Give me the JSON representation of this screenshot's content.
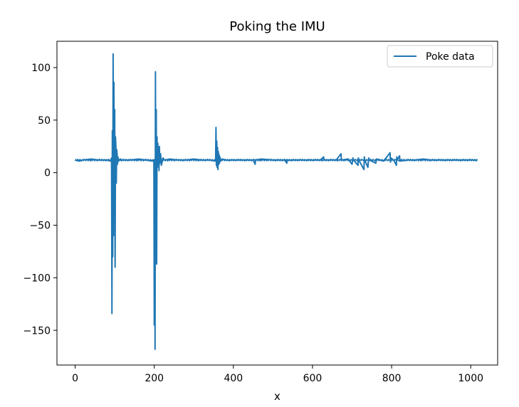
{
  "chart_data": {
    "type": "line",
    "title": "Poking the IMU",
    "xlabel": "x",
    "ylabel": "",
    "xlim": [
      -46,
      1068
    ],
    "ylim": [
      -183,
      125
    ],
    "xticks": [
      0,
      200,
      400,
      600,
      800,
      1000
    ],
    "yticks": [
      100,
      50,
      0,
      -50,
      -100,
      -150
    ],
    "xtick_labels": [
      "0",
      "200",
      "400",
      "600",
      "800",
      "1000"
    ],
    "ytick_labels": [
      "100",
      "50",
      "0",
      "−50",
      "−100",
      "−150"
    ],
    "grid": false,
    "legend": {
      "placement": "top-right",
      "entries": [
        "Poke data"
      ]
    },
    "series": [
      {
        "name": "Poke data",
        "color": "#1f77b4",
        "baseline": 12,
        "x_range": [
          0,
          1017
        ],
        "points": [
          [
            0,
            12
          ],
          [
            10,
            11
          ],
          [
            20,
            12
          ],
          [
            40,
            13
          ],
          [
            60,
            12
          ],
          [
            80,
            12
          ],
          [
            90,
            11
          ],
          [
            92,
            14
          ],
          [
            93,
            -134
          ],
          [
            94,
            40
          ],
          [
            95,
            -80
          ],
          [
            96,
            113
          ],
          [
            97,
            -60
          ],
          [
            98,
            86
          ],
          [
            99,
            -30
          ],
          [
            100,
            60
          ],
          [
            101,
            -90
          ],
          [
            102,
            34
          ],
          [
            103,
            25
          ],
          [
            104,
            -10
          ],
          [
            105,
            22
          ],
          [
            106,
            18
          ],
          [
            107,
            8
          ],
          [
            108,
            15
          ],
          [
            110,
            11
          ],
          [
            114,
            13
          ],
          [
            118,
            12
          ],
          [
            140,
            12
          ],
          [
            160,
            13
          ],
          [
            180,
            12
          ],
          [
            195,
            11
          ],
          [
            199,
            12
          ],
          [
            200,
            -145
          ],
          [
            201,
            10
          ],
          [
            202,
            -168
          ],
          [
            203,
            96
          ],
          [
            204,
            -50
          ],
          [
            205,
            60
          ],
          [
            206,
            -87
          ],
          [
            207,
            34
          ],
          [
            208,
            5
          ],
          [
            209,
            28
          ],
          [
            210,
            10
          ],
          [
            211,
            20
          ],
          [
            212,
            2
          ],
          [
            213,
            25
          ],
          [
            214,
            9
          ],
          [
            216,
            18
          ],
          [
            218,
            7
          ],
          [
            222,
            14
          ],
          [
            226,
            12
          ],
          [
            240,
            13
          ],
          [
            260,
            12
          ],
          [
            280,
            12
          ],
          [
            300,
            13
          ],
          [
            320,
            12
          ],
          [
            340,
            12
          ],
          [
            355,
            11
          ],
          [
            356,
            43
          ],
          [
            357,
            7
          ],
          [
            358,
            30
          ],
          [
            359,
            5
          ],
          [
            360,
            24
          ],
          [
            361,
            3
          ],
          [
            362,
            20
          ],
          [
            363,
            8
          ],
          [
            364,
            17
          ],
          [
            365,
            9
          ],
          [
            366,
            15
          ],
          [
            368,
            11
          ],
          [
            372,
            13
          ],
          [
            380,
            12
          ],
          [
            420,
            12
          ],
          [
            450,
            12
          ],
          [
            455,
            8
          ],
          [
            456,
            12
          ],
          [
            470,
            13
          ],
          [
            500,
            12
          ],
          [
            530,
            12
          ],
          [
            535,
            9
          ],
          [
            536,
            12
          ],
          [
            560,
            12
          ],
          [
            600,
            12
          ],
          [
            620,
            12
          ],
          [
            628,
            15
          ],
          [
            629,
            12
          ],
          [
            660,
            12
          ],
          [
            672,
            18
          ],
          [
            673,
            12
          ],
          [
            690,
            13
          ],
          [
            700,
            8
          ],
          [
            702,
            14
          ],
          [
            704,
            12
          ],
          [
            715,
            7
          ],
          [
            716,
            14
          ],
          [
            717,
            12
          ],
          [
            730,
            3
          ],
          [
            731,
            15
          ],
          [
            732,
            12
          ],
          [
            740,
            5
          ],
          [
            742,
            14
          ],
          [
            744,
            12
          ],
          [
            760,
            9
          ],
          [
            762,
            13
          ],
          [
            780,
            11
          ],
          [
            790,
            16
          ],
          [
            796,
            19
          ],
          [
            797,
            10
          ],
          [
            798,
            14
          ],
          [
            805,
            12
          ],
          [
            812,
            7
          ],
          [
            813,
            15
          ],
          [
            814,
            12
          ],
          [
            820,
            16
          ],
          [
            821,
            11
          ],
          [
            840,
            12
          ],
          [
            860,
            12
          ],
          [
            880,
            13
          ],
          [
            900,
            12
          ],
          [
            940,
            12
          ],
          [
            980,
            12
          ],
          [
            1017,
            12
          ]
        ]
      }
    ]
  }
}
